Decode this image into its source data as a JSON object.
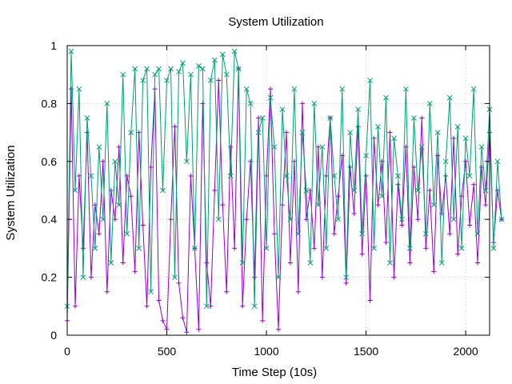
{
  "chart_data": {
    "type": "line",
    "title": "System Utilization",
    "xlabel": "Time Step (10s)",
    "ylabel": "System Utilization",
    "xlim": [
      0,
      2120
    ],
    "ylim": [
      0,
      1
    ],
    "xticks": [
      0,
      500,
      1000,
      1500,
      2000
    ],
    "yticks": [
      0,
      0.2,
      0.4,
      0.6,
      0.8,
      1
    ],
    "xtick_labels": [
      "0",
      "500",
      "1000",
      "1500",
      "2000"
    ],
    "ytick_labels": [
      "0",
      "0.2",
      "0.4",
      "0.6",
      "0.8",
      "1"
    ],
    "grid": true,
    "legend": "none",
    "x_step": 20,
    "series": [
      {
        "marker": "plus",
        "color": "#9400d3",
        "values": [
          0.05,
          0.85,
          0.1,
          0.55,
          0.3,
          0.7,
          0.2,
          0.45,
          0.35,
          0.6,
          0.15,
          0.5,
          0.4,
          0.65,
          0.25,
          0.55,
          0.48,
          0.22,
          0.7,
          0.38,
          0.1,
          0.58,
          0.85,
          0.12,
          0.05,
          0.02,
          0.4,
          0.72,
          0.18,
          0.06,
          0.01,
          0.55,
          0.3,
          0.02,
          0.8,
          0.25,
          0.1,
          0.5,
          0.88,
          0.45,
          0.15,
          0.65,
          0.3,
          0.92,
          0.1,
          0.4,
          0.6,
          0.2,
          0.75,
          0.05,
          0.55,
          0.85,
          0.35,
          0.02,
          0.45,
          0.7,
          0.25,
          0.6,
          0.15,
          0.8,
          0.4,
          0.5,
          0.3,
          0.65,
          0.2,
          0.55,
          0.75,
          0.35,
          0.48,
          0.62,
          0.18,
          0.58,
          0.42,
          0.72,
          0.28,
          0.55,
          0.12,
          0.68,
          0.45,
          0.6,
          0.32,
          0.7,
          0.2,
          0.52,
          0.38,
          0.65,
          0.25,
          0.58,
          0.4,
          0.75,
          0.3,
          0.5,
          0.22,
          0.62,
          0.42,
          0.55,
          0.35,
          0.68,
          0.28,
          0.48,
          0.6,
          0.38,
          0.52,
          0.25,
          0.58,
          0.45,
          0.7,
          0.32,
          0.5,
          0.4
        ]
      },
      {
        "marker": "cross",
        "color": "#009e73",
        "values": [
          0.1,
          0.98,
          0.5,
          0.85,
          0.2,
          0.75,
          0.55,
          0.3,
          0.65,
          0.4,
          0.8,
          0.25,
          0.6,
          0.45,
          0.9,
          0.35,
          0.7,
          0.92,
          0.3,
          0.88,
          0.92,
          0.15,
          0.9,
          0.92,
          0.5,
          0.88,
          0.92,
          0.2,
          0.91,
          0.94,
          0.6,
          0.9,
          0.3,
          0.93,
          0.92,
          0.1,
          0.88,
          0.95,
          0.4,
          0.97,
          0.9,
          0.55,
          0.98,
          0.92,
          0.25,
          0.85,
          0.8,
          0.1,
          0.7,
          0.75,
          0.3,
          0.82,
          0.65,
          0.2,
          0.78,
          0.55,
          0.4,
          0.85,
          0.35,
          0.7,
          0.5,
          0.25,
          0.8,
          0.45,
          0.65,
          0.3,
          0.75,
          0.55,
          0.4,
          0.85,
          0.2,
          0.7,
          0.5,
          0.78,
          0.35,
          0.62,
          0.88,
          0.3,
          0.72,
          0.48,
          0.82,
          0.25,
          0.68,
          0.55,
          0.4,
          0.85,
          0.3,
          0.75,
          0.5,
          0.65,
          0.35,
          0.8,
          0.45,
          0.7,
          0.25,
          0.6,
          0.82,
          0.4,
          0.72,
          0.3,
          0.68,
          0.55,
          0.85,
          0.35,
          0.65,
          0.5,
          0.78,
          0.3,
          0.6,
          0.4
        ]
      }
    ]
  }
}
